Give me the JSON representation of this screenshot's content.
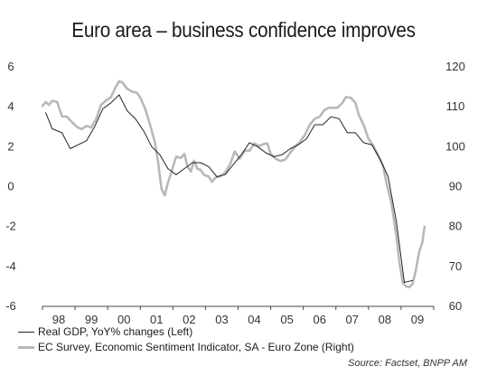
{
  "chart_data": {
    "type": "line",
    "title": "Euro area – business confidence improves",
    "x_tick_labels": [
      "98",
      "99",
      "00",
      "01",
      "02",
      "03",
      "04",
      "05",
      "06",
      "07",
      "08",
      "09"
    ],
    "xlim": [
      1998.0,
      2010.0
    ],
    "left_axis": {
      "ylim": [
        -6,
        6
      ],
      "ticks": [
        "6",
        "4",
        "2",
        "0",
        "-2",
        "-4",
        "-6"
      ]
    },
    "right_axis": {
      "ylim": [
        60,
        120
      ],
      "ticks": [
        "120",
        "110",
        "100",
        "90",
        "80",
        "70",
        "60"
      ]
    },
    "grid": false,
    "legend_position": "bottom-left",
    "series": [
      {
        "name": "Real GDP, YoY% changes (Left)",
        "axis": "left",
        "color": "#222222",
        "points": [
          [
            1998.1,
            3.7
          ],
          [
            1998.3,
            2.9
          ],
          [
            1998.6,
            2.7
          ],
          [
            1998.85,
            1.9
          ],
          [
            1999.1,
            2.1
          ],
          [
            1999.35,
            2.3
          ],
          [
            1999.6,
            3.0
          ],
          [
            1999.85,
            3.9
          ],
          [
            2000.1,
            4.2
          ],
          [
            2000.35,
            4.6
          ],
          [
            2000.6,
            3.8
          ],
          [
            2000.85,
            3.4
          ],
          [
            2001.1,
            2.8
          ],
          [
            2001.35,
            2.0
          ],
          [
            2001.6,
            1.6
          ],
          [
            2001.85,
            0.9
          ],
          [
            2002.1,
            0.6
          ],
          [
            2002.35,
            0.9
          ],
          [
            2002.6,
            1.2
          ],
          [
            2002.85,
            1.2
          ],
          [
            2003.1,
            1.0
          ],
          [
            2003.35,
            0.5
          ],
          [
            2003.6,
            0.6
          ],
          [
            2003.85,
            1.1
          ],
          [
            2004.1,
            1.6
          ],
          [
            2004.35,
            2.2
          ],
          [
            2004.6,
            2.0
          ],
          [
            2004.85,
            1.7
          ],
          [
            2005.1,
            1.5
          ],
          [
            2005.35,
            1.6
          ],
          [
            2005.6,
            1.9
          ],
          [
            2005.85,
            2.1
          ],
          [
            2006.1,
            2.4
          ],
          [
            2006.35,
            3.1
          ],
          [
            2006.6,
            3.1
          ],
          [
            2006.85,
            3.5
          ],
          [
            2007.1,
            3.4
          ],
          [
            2007.35,
            2.7
          ],
          [
            2007.6,
            2.7
          ],
          [
            2007.85,
            2.2
          ],
          [
            2008.1,
            2.1
          ],
          [
            2008.35,
            1.4
          ],
          [
            2008.6,
            0.5
          ],
          [
            2008.85,
            -1.7
          ],
          [
            2009.1,
            -4.8
          ],
          [
            2009.35,
            -4.7
          ]
        ]
      },
      {
        "name": "EC Survey, Economic Sentiment Indicator, SA - Euro Zone  (Right)",
        "axis": "right",
        "color": "#b8b8b8",
        "points": [
          [
            1998.0,
            110.2
          ],
          [
            1998.1,
            111.2
          ],
          [
            1998.2,
            110.5
          ],
          [
            1998.3,
            111.5
          ],
          [
            1998.45,
            111.2
          ],
          [
            1998.6,
            107.6
          ],
          [
            1998.75,
            107.5
          ],
          [
            1998.9,
            106.2
          ],
          [
            1999.05,
            105.0
          ],
          [
            1999.2,
            104.4
          ],
          [
            1999.35,
            105.2
          ],
          [
            1999.5,
            104.8
          ],
          [
            1999.65,
            107.0
          ],
          [
            1999.8,
            110.5
          ],
          [
            1999.95,
            111.6
          ],
          [
            2000.1,
            112.4
          ],
          [
            2000.25,
            115.0
          ],
          [
            2000.35,
            116.4
          ],
          [
            2000.45,
            116.1
          ],
          [
            2000.6,
            114.5
          ],
          [
            2000.75,
            113.8
          ],
          [
            2000.9,
            113.5
          ],
          [
            2001.0,
            112.3
          ],
          [
            2001.15,
            109.5
          ],
          [
            2001.3,
            105.5
          ],
          [
            2001.45,
            101.0
          ],
          [
            2001.55,
            96.0
          ],
          [
            2001.65,
            89.5
          ],
          [
            2001.75,
            87.8
          ],
          [
            2001.85,
            91.0
          ],
          [
            2001.95,
            93.5
          ],
          [
            2002.1,
            97.5
          ],
          [
            2002.25,
            97.2
          ],
          [
            2002.35,
            98.2
          ],
          [
            2002.45,
            95.0
          ],
          [
            2002.55,
            93.8
          ],
          [
            2002.65,
            96.5
          ],
          [
            2002.75,
            94.5
          ],
          [
            2002.85,
            94.2
          ],
          [
            2002.95,
            93.0
          ],
          [
            2003.1,
            92.5
          ],
          [
            2003.2,
            91.2
          ],
          [
            2003.3,
            92.2
          ],
          [
            2003.45,
            92.6
          ],
          [
            2003.6,
            93.5
          ],
          [
            2003.75,
            95.5
          ],
          [
            2003.9,
            98.8
          ],
          [
            2004.05,
            97.0
          ],
          [
            2004.2,
            99.0
          ],
          [
            2004.35,
            99.0
          ],
          [
            2004.5,
            100.8
          ],
          [
            2004.65,
            100.2
          ],
          [
            2004.8,
            100.7
          ],
          [
            2004.9,
            100.8
          ],
          [
            2005.0,
            98.2
          ],
          [
            2005.15,
            97.0
          ],
          [
            2005.3,
            96.4
          ],
          [
            2005.45,
            96.8
          ],
          [
            2005.6,
            98.5
          ],
          [
            2005.75,
            100.0
          ],
          [
            2005.9,
            101.2
          ],
          [
            2006.05,
            103.0
          ],
          [
            2006.2,
            105.5
          ],
          [
            2006.35,
            107.0
          ],
          [
            2006.5,
            107.5
          ],
          [
            2006.65,
            109.2
          ],
          [
            2006.8,
            109.8
          ],
          [
            2006.95,
            109.7
          ],
          [
            2007.05,
            109.8
          ],
          [
            2007.2,
            111.0
          ],
          [
            2007.3,
            112.4
          ],
          [
            2007.45,
            112.3
          ],
          [
            2007.6,
            111.0
          ],
          [
            2007.7,
            108.0
          ],
          [
            2007.85,
            105.5
          ],
          [
            2008.0,
            102.0
          ],
          [
            2008.15,
            100.2
          ],
          [
            2008.3,
            97.7
          ],
          [
            2008.45,
            95.0
          ],
          [
            2008.55,
            91.0
          ],
          [
            2008.7,
            86.0
          ],
          [
            2008.85,
            78.0
          ],
          [
            2008.95,
            71.0
          ],
          [
            2009.05,
            66.0
          ],
          [
            2009.15,
            65.0
          ],
          [
            2009.25,
            64.8
          ],
          [
            2009.35,
            65.6
          ],
          [
            2009.45,
            69.0
          ],
          [
            2009.55,
            73.5
          ],
          [
            2009.65,
            76.0
          ],
          [
            2009.72,
            80.0
          ]
        ]
      }
    ],
    "source": "Source: Factset, BNPP AM"
  }
}
